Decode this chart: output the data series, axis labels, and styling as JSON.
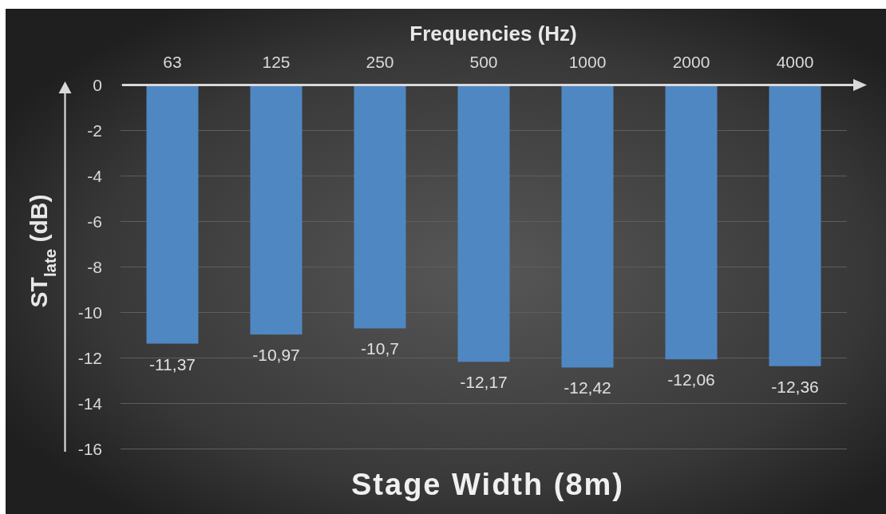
{
  "chart_data": {
    "type": "bar",
    "title": "Stage Width (8m)",
    "xlabel": "Frequencies (Hz)",
    "ylabel": "ST$_{late}$ (dB)",
    "categories": [
      "63",
      "125",
      "250",
      "500",
      "1000",
      "2000",
      "4000"
    ],
    "values": [
      -11.37,
      -10.97,
      -10.7,
      -12.17,
      -12.42,
      -12.06,
      -12.36
    ],
    "value_labels": [
      "-11,37",
      "-10,97",
      "-10,7",
      "-12,17",
      "-12,42",
      "-12,06",
      "-12,36"
    ],
    "color": "#4f87c2",
    "ylim": [
      -16,
      0
    ],
    "yticks": [
      -16,
      -14,
      -12,
      -10,
      -8,
      -6,
      -4,
      -2,
      0
    ],
    "grid": "y"
  }
}
